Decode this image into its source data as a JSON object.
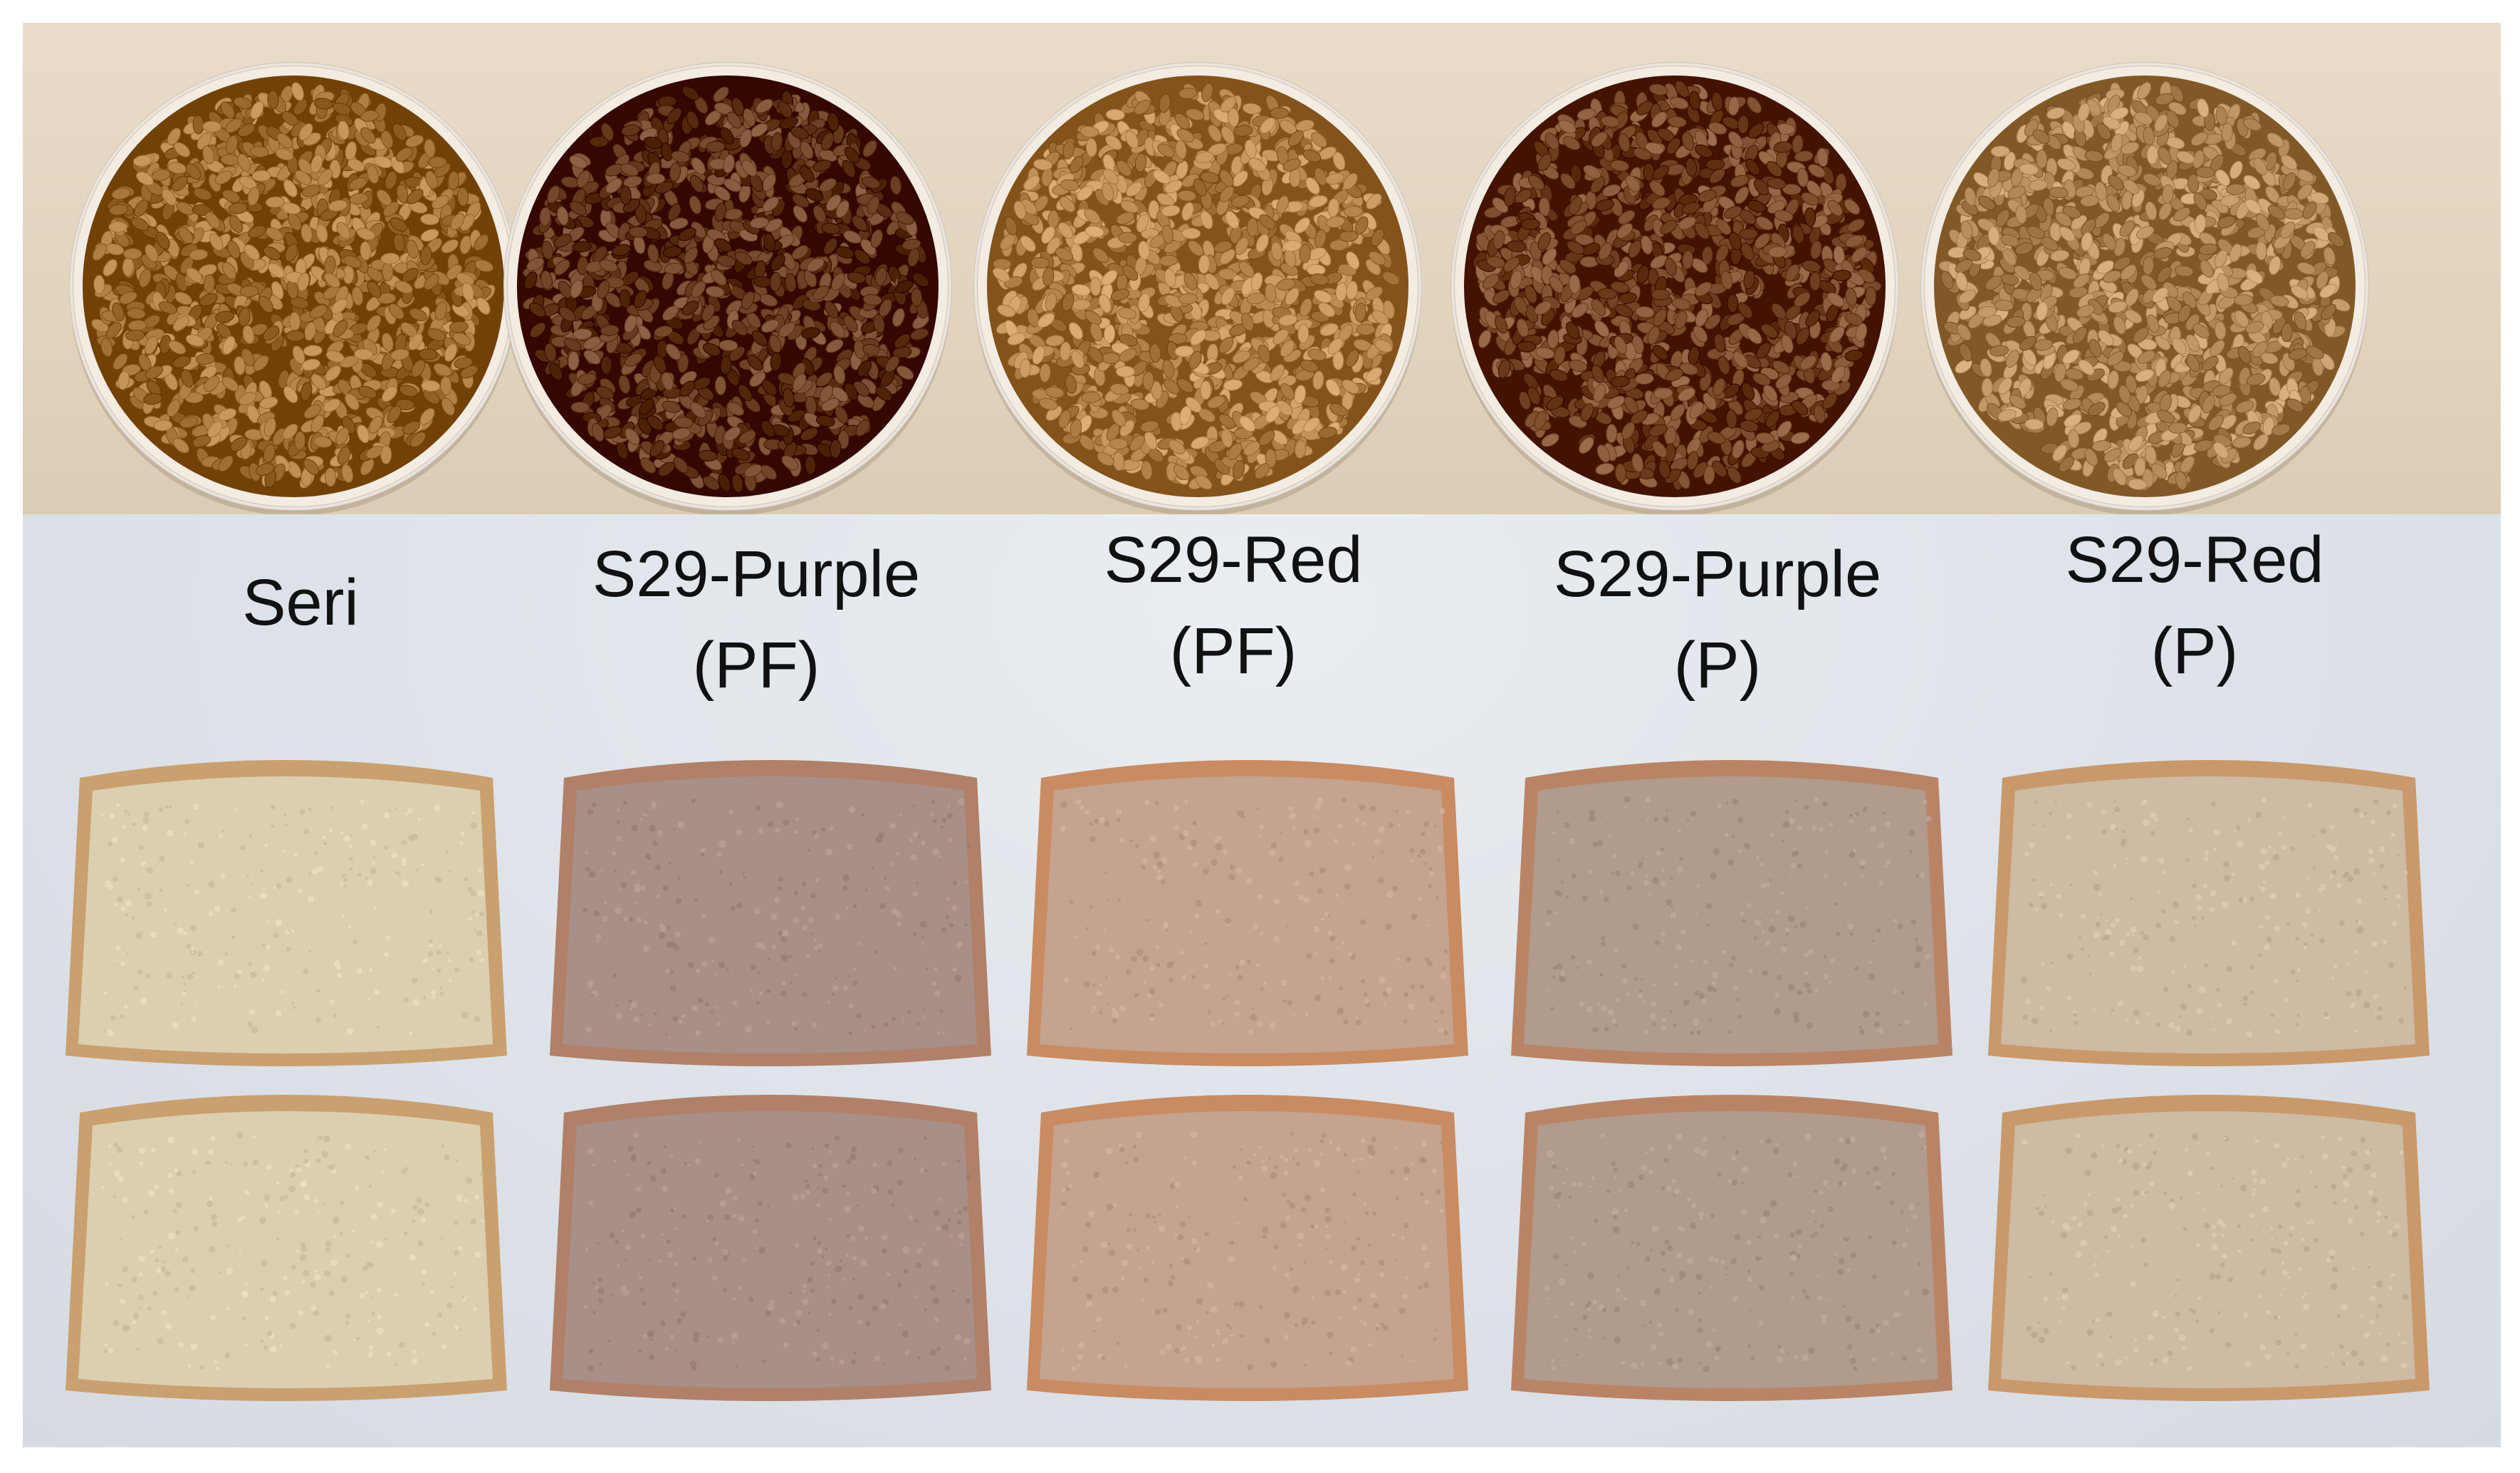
{
  "samples": [
    {
      "label": "Seri",
      "sublabel": "",
      "grain_color": "#a9793c",
      "crumb_color": "#dccfb0",
      "crust_color": "#c9a06f"
    },
    {
      "label": "S29-Purple",
      "sublabel": "(PF)",
      "grain_color": "#6b3f22",
      "crumb_color": "#a89088",
      "crust_color": "#b08068"
    },
    {
      "label": "S29-Red",
      "sublabel": "(PF)",
      "grain_color": "#bb8a51",
      "crumb_color": "#c4a38f",
      "crust_color": "#c98b62"
    },
    {
      "label": "S29-Purple",
      "sublabel": "(P)",
      "grain_color": "#7a4a2a",
      "crumb_color": "#b09b8d",
      "crust_color": "#b98466"
    },
    {
      "label": "S29-Red",
      "sublabel": "(P)",
      "grain_color": "#b8905d",
      "crumb_color": "#cdbba3",
      "crust_color": "#c9996b"
    }
  ]
}
